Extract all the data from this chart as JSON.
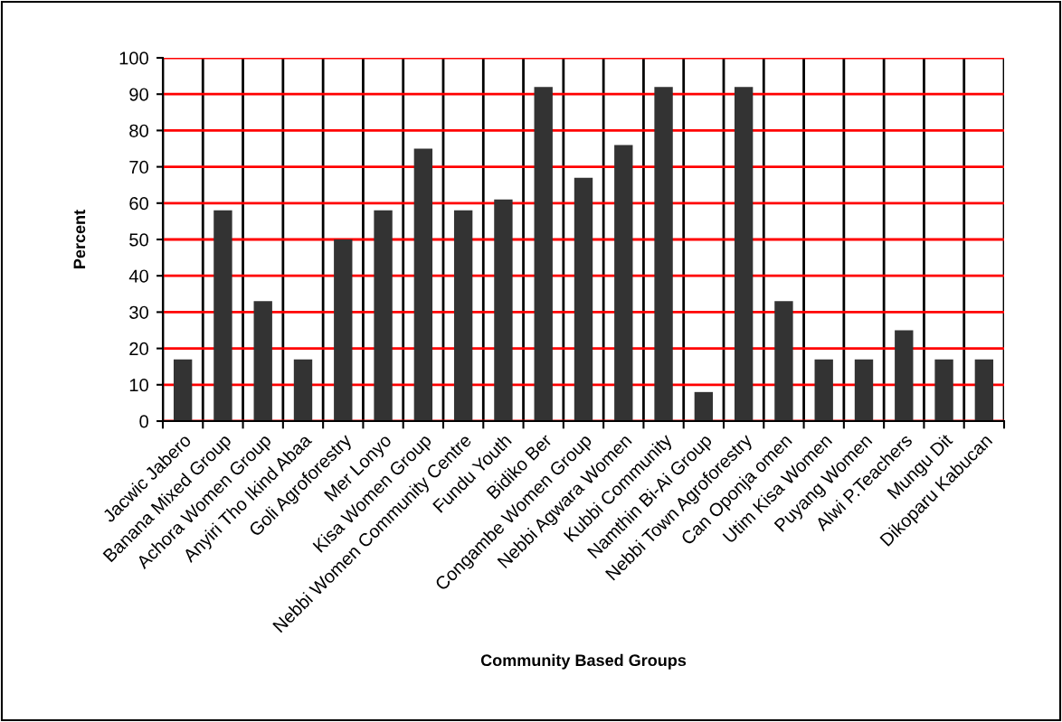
{
  "chart_data": {
    "type": "bar",
    "xlabel": "Community Based Groups",
    "ylabel": "Percent",
    "categories": [
      "Jacwic Jabero",
      "Banana Mixed Group",
      "Achora Women Group",
      "Anyiri Tho Ikind Abaa",
      "Goli Agroforestry",
      "Mer Lonyo",
      "Kisa Women Group",
      "Nebbi Women Community Centre",
      "Fundu Youth",
      "Bidiko Ber",
      "Congambe Women Group",
      "Nebbi Agwara Women",
      "Kubbi Community",
      "Namthin Bi-Ai Group",
      "Nebbi Town Agroforestry",
      "Can Oponja omen",
      "Utim Kisa Women",
      "Puyang Women",
      "Alwi P.Teachers",
      "Mungu Dit",
      "Dikoparu Kabucan"
    ],
    "values": [
      17,
      58,
      33,
      17,
      50,
      58,
      75,
      58,
      61,
      92,
      67,
      76,
      92,
      8,
      92,
      33,
      17,
      17,
      25,
      17,
      17
    ],
    "color": "#333333",
    "ylim": [
      0,
      100
    ],
    "yticks": [
      0,
      10,
      20,
      30,
      40,
      50,
      60,
      70,
      80,
      90,
      100
    ],
    "grid": true
  }
}
